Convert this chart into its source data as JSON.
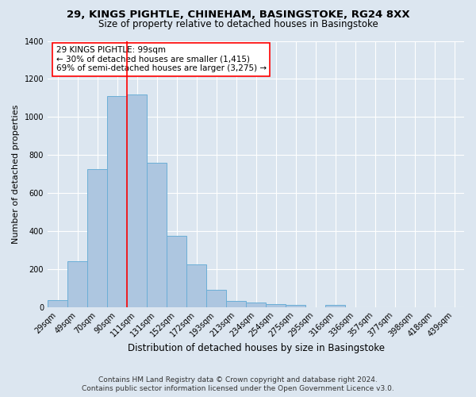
{
  "title": "29, KINGS PIGHTLE, CHINEHAM, BASINGSTOKE, RG24 8XX",
  "subtitle": "Size of property relative to detached houses in Basingstoke",
  "xlabel": "Distribution of detached houses by size in Basingstoke",
  "ylabel": "Number of detached properties",
  "bar_labels": [
    "29sqm",
    "49sqm",
    "70sqm",
    "90sqm",
    "111sqm",
    "131sqm",
    "152sqm",
    "172sqm",
    "193sqm",
    "213sqm",
    "234sqm",
    "254sqm",
    "275sqm",
    "295sqm",
    "316sqm",
    "336sqm",
    "357sqm",
    "377sqm",
    "398sqm",
    "418sqm",
    "439sqm"
  ],
  "bar_heights": [
    35,
    240,
    725,
    1110,
    1120,
    760,
    375,
    225,
    90,
    30,
    25,
    15,
    10,
    0,
    10,
    0,
    0,
    0,
    0,
    0,
    0
  ],
  "bar_color": "#adc6e0",
  "bar_edge_color": "#6baed6",
  "vline_x": 3.5,
  "vline_color": "red",
  "ylim": [
    0,
    1400
  ],
  "yticks": [
    0,
    200,
    400,
    600,
    800,
    1000,
    1200,
    1400
  ],
  "annotation_text": "29 KINGS PIGHTLE: 99sqm\n← 30% of detached houses are smaller (1,415)\n69% of semi-detached houses are larger (3,275) →",
  "annotation_box_color": "#ffffff",
  "annotation_border_color": "red",
  "background_color": "#dce6f0",
  "plot_bg_color": "#dce6f0",
  "footer_line1": "Contains HM Land Registry data © Crown copyright and database right 2024.",
  "footer_line2": "Contains public sector information licensed under the Open Government Licence v3.0.",
  "title_fontsize": 9.5,
  "subtitle_fontsize": 8.5,
  "xlabel_fontsize": 8.5,
  "ylabel_fontsize": 8,
  "tick_fontsize": 7,
  "annotation_fontsize": 7.5,
  "footer_fontsize": 6.5
}
